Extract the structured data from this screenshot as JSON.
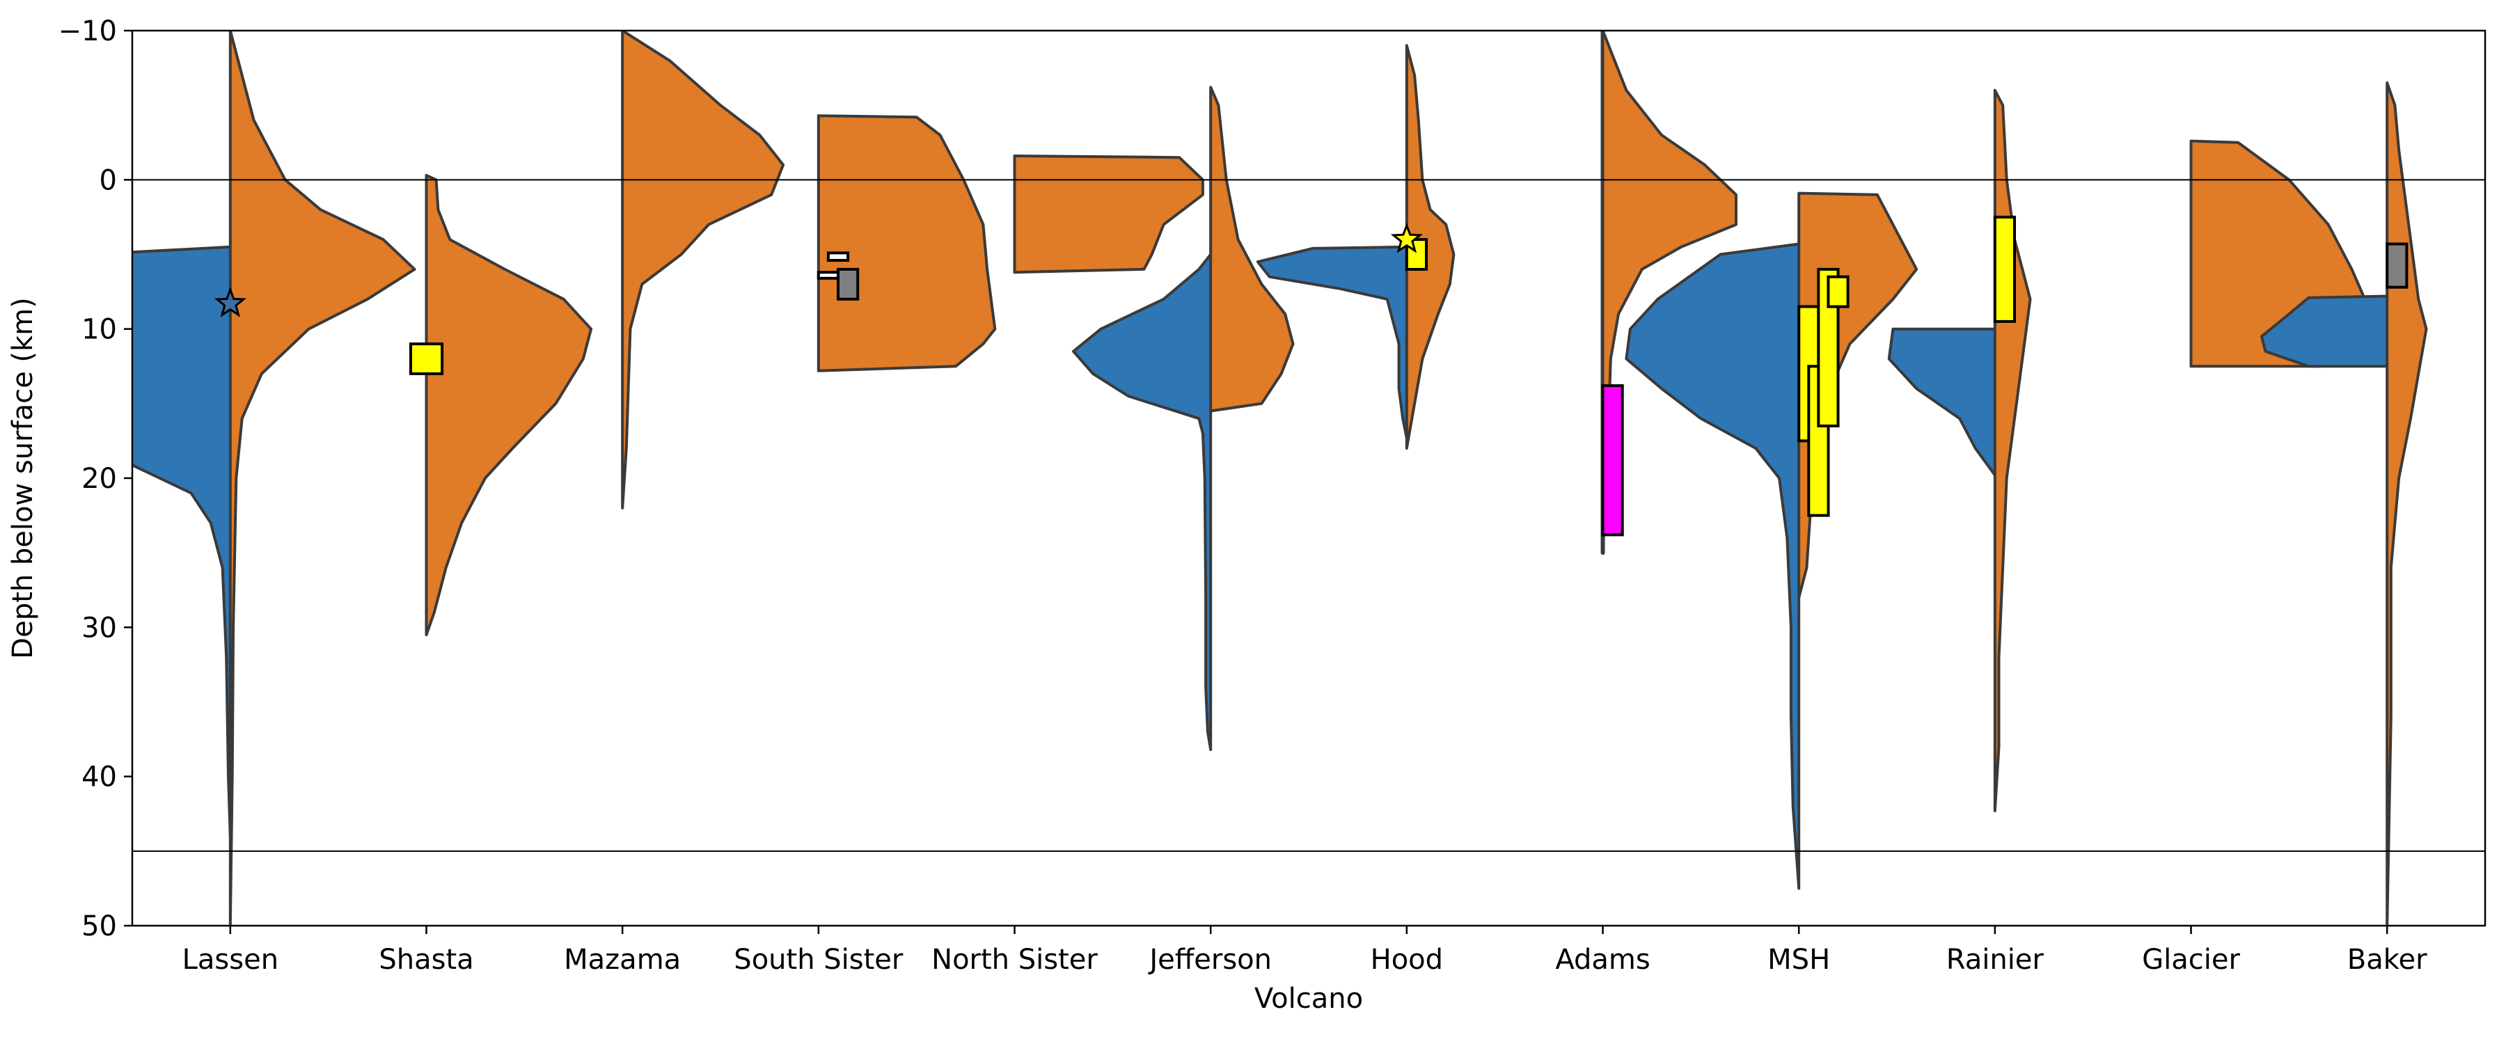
{
  "chart_data": {
    "type": "violin",
    "xlabel": "Volcano",
    "ylabel": "Depth below surface (km)",
    "ylim": [
      50,
      -10
    ],
    "yticks": [
      -10,
      0,
      10,
      20,
      30,
      40,
      50
    ],
    "ytick_labels": [
      "−10",
      "0",
      "10",
      "20",
      "30",
      "40",
      "50"
    ],
    "reference_lines": [
      0,
      45
    ],
    "categories": [
      "Lassen",
      "Shasta",
      "Mazama",
      "South Sister",
      "North Sister",
      "Jefferson",
      "Hood",
      "Adams",
      "MSH",
      "Rainier",
      "Glacier",
      "Baker"
    ],
    "colors": {
      "left_half": "#2f77b4",
      "right_half": "#e07b28",
      "outline": "#3a3a3a",
      "yellow_box": "#ffff00",
      "gray_box": "#808080",
      "magenta_box": "#ff00ff"
    },
    "violins": [
      {
        "category": "Lassen",
        "left": [
          [
            4.5,
            0.0
          ],
          [
            5,
            0.72
          ],
          [
            7,
            0.84
          ],
          [
            10,
            0.9
          ],
          [
            12,
            0.96
          ],
          [
            14,
            0.96
          ],
          [
            16,
            0.86
          ],
          [
            18,
            0.68
          ],
          [
            20,
            0.36
          ],
          [
            21,
            0.2
          ],
          [
            23,
            0.1
          ],
          [
            26,
            0.04
          ],
          [
            32,
            0.02
          ],
          [
            40,
            0.01
          ],
          [
            44,
            0.0
          ]
        ],
        "right": [
          [
            -10,
            0.0
          ],
          [
            -8,
            0.04
          ],
          [
            -4,
            0.12
          ],
          [
            0,
            0.28
          ],
          [
            2,
            0.46
          ],
          [
            4,
            0.78
          ],
          [
            6,
            0.94
          ],
          [
            8,
            0.7
          ],
          [
            10,
            0.4
          ],
          [
            13,
            0.16
          ],
          [
            16,
            0.06
          ],
          [
            20,
            0.03
          ],
          [
            30,
            0.015
          ],
          [
            40,
            0.01
          ],
          [
            50,
            0.0
          ]
        ]
      },
      {
        "category": "Shasta",
        "right": [
          [
            -0.3,
            0.0
          ],
          [
            0,
            0.05
          ],
          [
            2,
            0.06
          ],
          [
            4,
            0.12
          ],
          [
            6,
            0.4
          ],
          [
            8,
            0.7
          ],
          [
            10,
            0.84
          ],
          [
            12,
            0.8
          ],
          [
            15,
            0.66
          ],
          [
            18,
            0.44
          ],
          [
            20,
            0.3
          ],
          [
            23,
            0.18
          ],
          [
            26,
            0.1
          ],
          [
            29,
            0.04
          ],
          [
            30.5,
            0.0
          ]
        ]
      },
      {
        "category": "Mazama",
        "right": [
          [
            -10,
            0.0
          ],
          [
            -8,
            0.24
          ],
          [
            -5,
            0.5
          ],
          [
            -3,
            0.7
          ],
          [
            -1,
            0.82
          ],
          [
            1,
            0.76
          ],
          [
            3,
            0.44
          ],
          [
            5,
            0.3
          ],
          [
            7,
            0.1
          ],
          [
            10,
            0.04
          ],
          [
            14,
            0.03
          ],
          [
            18,
            0.02
          ],
          [
            22,
            0.0
          ]
        ]
      },
      {
        "category": "South Sister",
        "right": [
          [
            -4.3,
            0.0
          ],
          [
            -4.2,
            0.5
          ],
          [
            -3,
            0.62
          ],
          [
            0,
            0.74
          ],
          [
            3,
            0.84
          ],
          [
            6,
            0.86
          ],
          [
            8,
            0.88
          ],
          [
            10,
            0.9
          ],
          [
            11,
            0.84
          ],
          [
            12.5,
            0.7
          ],
          [
            12.8,
            0.0
          ]
        ]
      },
      {
        "category": "North Sister",
        "right": [
          [
            -1.6,
            0.0
          ],
          [
            -1.5,
            0.84
          ],
          [
            0,
            0.96
          ],
          [
            1,
            0.96
          ],
          [
            3,
            0.76
          ],
          [
            5,
            0.7
          ],
          [
            6,
            0.66
          ],
          [
            6.2,
            0.0
          ]
        ]
      },
      {
        "category": "Jefferson",
        "left": [
          [
            5,
            0.0
          ],
          [
            6,
            0.06
          ],
          [
            8,
            0.24
          ],
          [
            10,
            0.56
          ],
          [
            11.5,
            0.7
          ],
          [
            13,
            0.6
          ],
          [
            14.5,
            0.42
          ],
          [
            16,
            0.06
          ],
          [
            17,
            0.04
          ],
          [
            20,
            0.03
          ],
          [
            28,
            0.025
          ],
          [
            34,
            0.025
          ],
          [
            37,
            0.015
          ],
          [
            38.2,
            0.0
          ]
        ],
        "right": [
          [
            -6.2,
            0.0
          ],
          [
            -5,
            0.04
          ],
          [
            0,
            0.08
          ],
          [
            4,
            0.14
          ],
          [
            7,
            0.26
          ],
          [
            9,
            0.38
          ],
          [
            11,
            0.42
          ],
          [
            13,
            0.36
          ],
          [
            15,
            0.26
          ],
          [
            15.5,
            0.0
          ]
        ]
      },
      {
        "category": "Hood",
        "left": [
          [
            4.5,
            0.0
          ],
          [
            4.6,
            0.48
          ],
          [
            5.5,
            0.76
          ],
          [
            6.5,
            0.7
          ],
          [
            7.3,
            0.34
          ],
          [
            8,
            0.1
          ],
          [
            11,
            0.04
          ],
          [
            14,
            0.04
          ],
          [
            16,
            0.02
          ],
          [
            17.3,
            0.0
          ]
        ],
        "right": [
          [
            -9,
            0.0
          ],
          [
            -7,
            0.04
          ],
          [
            -4,
            0.06
          ],
          [
            0,
            0.08
          ],
          [
            2,
            0.12
          ],
          [
            3,
            0.2
          ],
          [
            5,
            0.24
          ],
          [
            7,
            0.22
          ],
          [
            9,
            0.16
          ],
          [
            12,
            0.08
          ],
          [
            15,
            0.04
          ],
          [
            18,
            0.0
          ]
        ]
      },
      {
        "category": "Adams",
        "left": [
          [
            -10,
            0.0
          ],
          [
            0,
            0.0
          ],
          [
            25,
            0.0
          ]
        ],
        "right": [
          [
            -10,
            0.0
          ],
          [
            -8,
            0.06
          ],
          [
            -6,
            0.12
          ],
          [
            -3,
            0.3
          ],
          [
            -1,
            0.52
          ],
          [
            1,
            0.68
          ],
          [
            3,
            0.68
          ],
          [
            4.5,
            0.4
          ],
          [
            6,
            0.2
          ],
          [
            9,
            0.08
          ],
          [
            12,
            0.04
          ],
          [
            16,
            0.03
          ],
          [
            20,
            0.02
          ],
          [
            25,
            0.0
          ]
        ]
      },
      {
        "category": "MSH",
        "left": [
          [
            4.3,
            0.0
          ],
          [
            5,
            0.4
          ],
          [
            8,
            0.72
          ],
          [
            10,
            0.86
          ],
          [
            12,
            0.88
          ],
          [
            14,
            0.7
          ],
          [
            16,
            0.5
          ],
          [
            18,
            0.22
          ],
          [
            20,
            0.1
          ],
          [
            24,
            0.06
          ],
          [
            30,
            0.04
          ],
          [
            36,
            0.04
          ],
          [
            42,
            0.03
          ],
          [
            47.5,
            0.0
          ]
        ],
        "right": [
          [
            0.9,
            0.0
          ],
          [
            1,
            0.4
          ],
          [
            4,
            0.52
          ],
          [
            6,
            0.6
          ],
          [
            8,
            0.48
          ],
          [
            11,
            0.26
          ],
          [
            14,
            0.16
          ],
          [
            18,
            0.1
          ],
          [
            22,
            0.06
          ],
          [
            26,
            0.04
          ],
          [
            28,
            0.0
          ]
        ]
      },
      {
        "category": "Rainier",
        "left": [
          [
            10,
            0.0
          ],
          [
            10,
            0.52
          ],
          [
            12,
            0.54
          ],
          [
            14,
            0.4
          ],
          [
            16,
            0.18
          ],
          [
            18,
            0.1
          ],
          [
            19.8,
            0.0
          ]
        ],
        "right": [
          [
            -6,
            0.0
          ],
          [
            -5,
            0.04
          ],
          [
            0,
            0.06
          ],
          [
            4,
            0.1
          ],
          [
            6,
            0.14
          ],
          [
            8,
            0.18
          ],
          [
            10,
            0.16
          ],
          [
            14,
            0.12
          ],
          [
            20,
            0.06
          ],
          [
            26,
            0.04
          ],
          [
            32,
            0.02
          ],
          [
            38,
            0.02
          ],
          [
            42.3,
            0.0
          ]
        ]
      },
      {
        "category": "Glacier",
        "right": [
          [
            -2.6,
            0.0
          ],
          [
            -2.5,
            0.24
          ],
          [
            0,
            0.5
          ],
          [
            3,
            0.7
          ],
          [
            6,
            0.82
          ],
          [
            9,
            0.92
          ],
          [
            11,
            0.88
          ],
          [
            12.5,
            0.66
          ],
          [
            12.5,
            0.0
          ]
        ]
      },
      {
        "category": "Baker",
        "left": [
          [
            7.8,
            0.0
          ],
          [
            7.9,
            0.4
          ],
          [
            9,
            0.5
          ],
          [
            10.5,
            0.64
          ],
          [
            11.5,
            0.62
          ],
          [
            12.5,
            0.4
          ],
          [
            12.5,
            0.0
          ]
        ],
        "right": [
          [
            -6.5,
            0.0
          ],
          [
            -5,
            0.04
          ],
          [
            -2,
            0.06
          ],
          [
            0,
            0.08
          ],
          [
            4,
            0.12
          ],
          [
            8,
            0.16
          ],
          [
            10,
            0.2
          ],
          [
            13,
            0.16
          ],
          [
            16,
            0.12
          ],
          [
            20,
            0.06
          ],
          [
            26,
            0.02
          ],
          [
            36,
            0.02
          ],
          [
            50,
            0.0
          ]
        ]
      }
    ],
    "rectangles": [
      {
        "category": "Shasta",
        "color": "yellow",
        "x0": -0.08,
        "x1": 0.08,
        "y0": 11.0,
        "y1": 13.0
      },
      {
        "category": "South Sister",
        "color": "white",
        "x0": 0.05,
        "x1": 0.15,
        "y0": 4.9,
        "y1": 5.4
      },
      {
        "category": "South Sister",
        "color": "white",
        "x0": 0.0,
        "x1": 0.12,
        "y0": 6.2,
        "y1": 6.6
      },
      {
        "category": "South Sister",
        "color": "gray",
        "x0": 0.1,
        "x1": 0.2,
        "y0": 6.0,
        "y1": 8.0
      },
      {
        "category": "Hood",
        "color": "yellow",
        "x0": 0.0,
        "x1": 0.1,
        "y0": 4.0,
        "y1": 6.0
      },
      {
        "category": "Adams",
        "color": "magenta",
        "x0": 0.0,
        "x1": 0.1,
        "y0": 13.8,
        "y1": 23.8
      },
      {
        "category": "MSH",
        "color": "yellow",
        "x0": 0.0,
        "x1": 0.1,
        "y0": 8.5,
        "y1": 17.5
      },
      {
        "category": "MSH",
        "color": "yellow",
        "x0": 0.05,
        "x1": 0.15,
        "y0": 12.5,
        "y1": 22.5
      },
      {
        "category": "MSH",
        "color": "yellow",
        "x0": 0.1,
        "x1": 0.2,
        "y0": 6.0,
        "y1": 16.5
      },
      {
        "category": "MSH",
        "color": "yellow",
        "x0": 0.15,
        "x1": 0.25,
        "y0": 6.5,
        "y1": 8.5
      },
      {
        "category": "Rainier",
        "color": "yellow",
        "x0": 0.0,
        "x1": 0.1,
        "y0": 2.5,
        "y1": 9.5
      },
      {
        "category": "Baker",
        "color": "gray",
        "x0": 0.0,
        "x1": 0.1,
        "y0": 4.3,
        "y1": 7.2
      }
    ],
    "stars": [
      {
        "category": "Lassen",
        "x": 0.0,
        "y": 8.3,
        "color": "#3b6ea5"
      },
      {
        "category": "Hood",
        "x": 0.0,
        "y": 4.0,
        "color": "#ffff00"
      }
    ]
  }
}
